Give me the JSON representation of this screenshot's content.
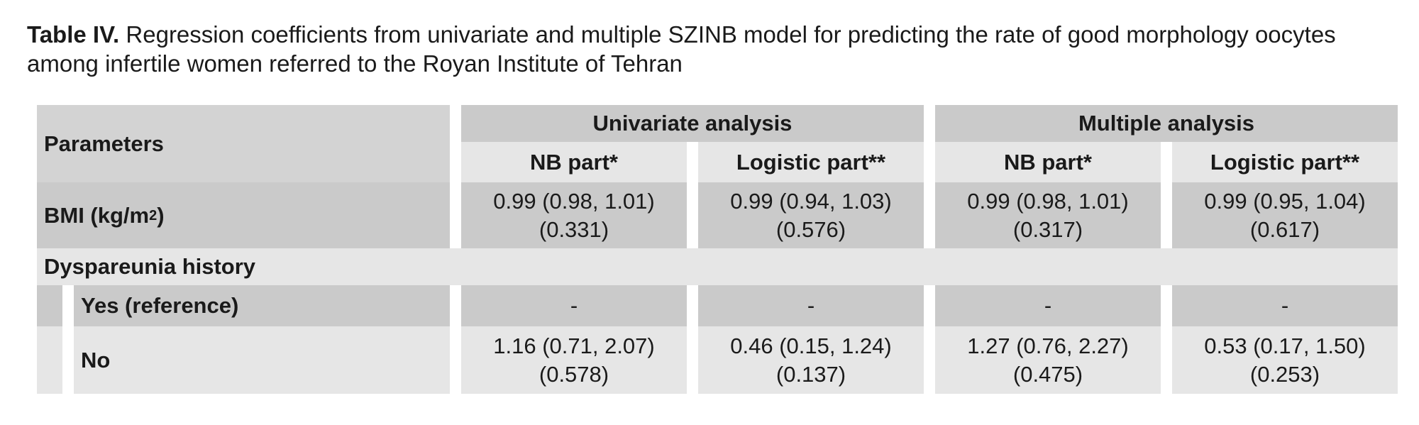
{
  "caption": {
    "label": "Table IV.",
    "text": " Regression coefficients from univariate and multiple SZINB model for predicting the rate of good morphology oocytes among infertile women referred to the Royan Institute of Tehran"
  },
  "table": {
    "param_header": "Parameters",
    "groups": [
      "Univariate analysis",
      "Multiple analysis"
    ],
    "subheaders": [
      "NB part*",
      "Logistic part**",
      "NB part*",
      "Logistic part**"
    ],
    "bmi": {
      "label": "BMI (kg/m",
      "sup": "2",
      "label_end": ")",
      "values": [
        {
          "coef": "0.99 (0.98, 1.01)",
          "p": "(0.331)"
        },
        {
          "coef": "0.99 (0.94, 1.03)",
          "p": "(0.576)"
        },
        {
          "coef": "0.99 (0.98, 1.01)",
          "p": "(0.317)"
        },
        {
          "coef": "0.99 (0.95, 1.04)",
          "p": "(0.617)"
        }
      ]
    },
    "dyspareunia": {
      "label": "Dyspareunia history",
      "yes": {
        "label": "Yes (reference)",
        "values": [
          "-",
          "-",
          "-",
          "-"
        ]
      },
      "no": {
        "label": "No",
        "values": [
          {
            "coef": "1.16 (0.71, 2.07)",
            "p": "(0.578)"
          },
          {
            "coef": "0.46 (0.15, 1.24)",
            "p": "(0.137)"
          },
          {
            "coef": "1.27 (0.76, 2.27)",
            "p": "(0.475)"
          },
          {
            "coef": "0.53 (0.17, 1.50)",
            "p": "(0.253)"
          }
        ]
      }
    }
  }
}
